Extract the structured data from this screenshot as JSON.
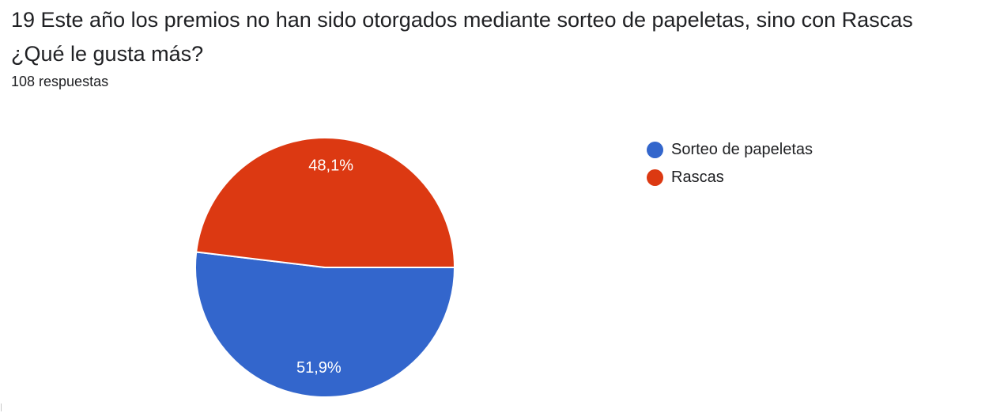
{
  "question": {
    "line1": "19 Este año los premios no han sido otorgados mediante sorteo de papeletas, sino con Rascas",
    "line2": "¿Qué le gusta más?",
    "responses": "108 respuestas"
  },
  "chart_data": {
    "type": "pie",
    "slices": [
      {
        "label": "Sorteo de papeletas",
        "value": 51.9,
        "display": "51,9%",
        "color": "#3366cc"
      },
      {
        "label": "Rascas",
        "value": 48.1,
        "display": "48,1%",
        "color": "#dc3912"
      }
    ],
    "legend_position": "right"
  }
}
